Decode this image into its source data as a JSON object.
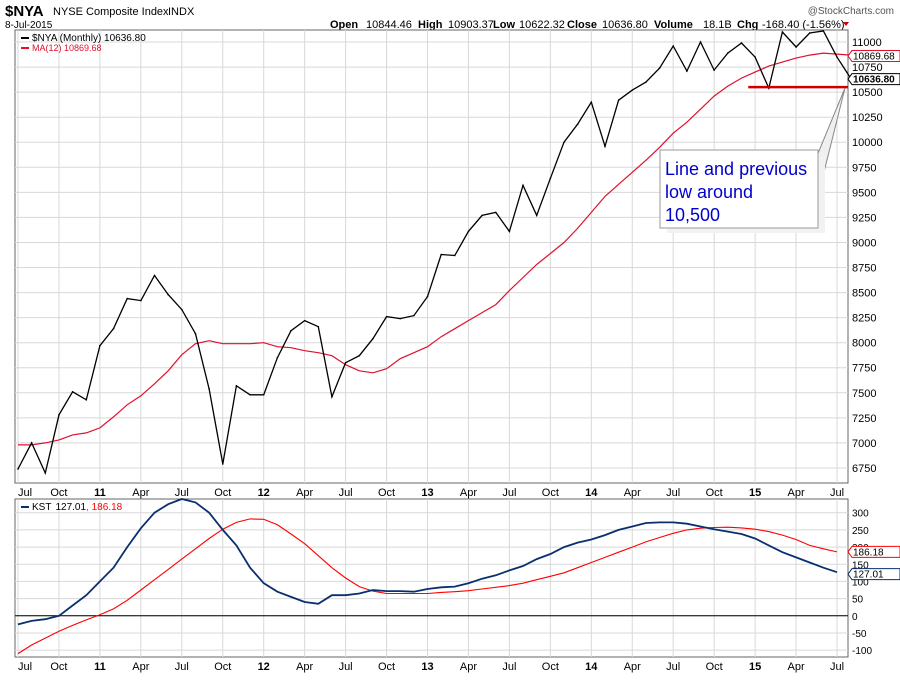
{
  "header": {
    "symbol": "$NYA",
    "name": "NYSE Composite Index",
    "exchange": "INDX",
    "date": "8-Jul-2015",
    "watermark": "@StockCharts.com",
    "open_label": "Open",
    "open": "10844.46",
    "high_label": "High",
    "high": "10903.37",
    "low_label": "Low",
    "low": "10622.32",
    "close_label": "Close",
    "close": "10636.80",
    "volume_label": "Volume",
    "volume": "18.1B",
    "chg_label": "Chg",
    "chg": "-168.40 (-1.56%)"
  },
  "colors": {
    "price": "#000000",
    "ma": "#e0102f",
    "kst": "#0a2f6e",
    "kst_signal": "#ff0000",
    "support": "#cc0000",
    "annotation_text": "#0000cc"
  },
  "chart_data": [
    {
      "type": "line",
      "panel": "price",
      "legend": [
        {
          "label": "$NYA (Monthly) 10636.80"
        },
        {
          "label": "MA(12) 10869.68"
        }
      ],
      "x_ticks": [
        "Jul",
        "Oct",
        "11",
        "Apr",
        "Jul",
        "Oct",
        "12",
        "Apr",
        "Jul",
        "Oct",
        "13",
        "Apr",
        "Jul",
        "Oct",
        "14",
        "Apr",
        "Jul",
        "Oct",
        "15",
        "Apr",
        "Jul"
      ],
      "y_ticks": [
        6750,
        7000,
        7250,
        7500,
        7750,
        8000,
        8250,
        8500,
        8750,
        9000,
        9250,
        9500,
        9750,
        10000,
        10250,
        10500,
        10750,
        11000
      ],
      "ylim": [
        6600,
        11120
      ],
      "grid": true,
      "x_index_range": [
        0,
        60
      ],
      "series": [
        {
          "name": "$NYA (Monthly)",
          "values": [
            6740,
            7000,
            6700,
            7280,
            7510,
            7430,
            7970,
            8140,
            8440,
            8420,
            8670,
            8480,
            8330,
            8090,
            7540,
            6790,
            7570,
            7480,
            7480,
            7850,
            8120,
            8220,
            8160,
            7460,
            7800,
            7870,
            8040,
            8260,
            8240,
            8270,
            8460,
            8880,
            8870,
            9110,
            9270,
            9300,
            9110,
            9570,
            9270,
            9640,
            10000,
            10180,
            10400,
            9960,
            10420,
            10520,
            10600,
            10740,
            10960,
            10710,
            11000,
            10720,
            10890,
            10990,
            10850,
            10540,
            11100,
            10950,
            11090,
            11110,
            10850,
            10640
          ]
        },
        {
          "name": "MA(12)",
          "values": [
            6980,
            6980,
            7000,
            7030,
            7080,
            7100,
            7150,
            7260,
            7380,
            7470,
            7590,
            7720,
            7880,
            7990,
            8020,
            7990,
            7990,
            7990,
            8000,
            7960,
            7950,
            7920,
            7900,
            7870,
            7780,
            7720,
            7700,
            7740,
            7840,
            7900,
            7960,
            8060,
            8140,
            8220,
            8300,
            8380,
            8520,
            8650,
            8780,
            8890,
            9000,
            9140,
            9300,
            9460,
            9580,
            9700,
            9820,
            9950,
            10090,
            10200,
            10330,
            10460,
            10560,
            10640,
            10700,
            10760,
            10800,
            10840,
            10870,
            10890,
            10880,
            10870
          ]
        }
      ],
      "value_labels": [
        "10869.68",
        "10636.80"
      ],
      "support_line": {
        "value": 10550,
        "x_from_index": 53.5,
        "x_to_index": 61
      },
      "annotation": {
        "lines": [
          "Line and previous",
          "low around",
          "10,500"
        ]
      }
    },
    {
      "type": "line",
      "panel": "kst",
      "legend": [
        {
          "label": "KST",
          "value": "127.01",
          "signal": "186.18"
        }
      ],
      "x_ticks": [
        "Jul",
        "Oct",
        "11",
        "Apr",
        "Jul",
        "Oct",
        "12",
        "Apr",
        "Jul",
        "Oct",
        "13",
        "Apr",
        "Jul",
        "Oct",
        "14",
        "Apr",
        "Jul",
        "Oct",
        "15",
        "Apr",
        "Jul"
      ],
      "y_ticks": [
        -100,
        -50,
        0,
        50,
        100,
        150,
        200,
        250,
        300
      ],
      "ylim": [
        -120,
        340
      ],
      "grid": true,
      "series": [
        {
          "name": "KST",
          "values": [
            -25,
            -15,
            -10,
            0,
            30,
            60,
            100,
            140,
            200,
            255,
            300,
            325,
            340,
            330,
            300,
            250,
            205,
            140,
            95,
            70,
            55,
            40,
            35,
            60,
            60,
            65,
            75,
            72,
            72,
            70,
            78,
            83,
            85,
            95,
            108,
            118,
            132,
            145,
            165,
            180,
            200,
            213,
            222,
            235,
            250,
            260,
            270,
            272,
            272,
            268,
            260,
            252,
            245,
            238,
            225,
            205,
            185,
            170,
            155,
            140,
            127
          ]
        },
        {
          "name": "Signal",
          "values": [
            -110,
            -85,
            -65,
            -45,
            -28,
            -12,
            3,
            20,
            45,
            75,
            105,
            135,
            165,
            195,
            225,
            252,
            272,
            282,
            281,
            265,
            238,
            210,
            175,
            140,
            110,
            85,
            72,
            65,
            65,
            65,
            65,
            68,
            70,
            73,
            78,
            83,
            88,
            95,
            105,
            115,
            125,
            140,
            155,
            170,
            185,
            200,
            215,
            228,
            240,
            250,
            255,
            257,
            258,
            256,
            252,
            245,
            235,
            222,
            205,
            195,
            186
          ]
        }
      ],
      "value_labels": [
        "186.18",
        "127.01"
      ]
    }
  ]
}
